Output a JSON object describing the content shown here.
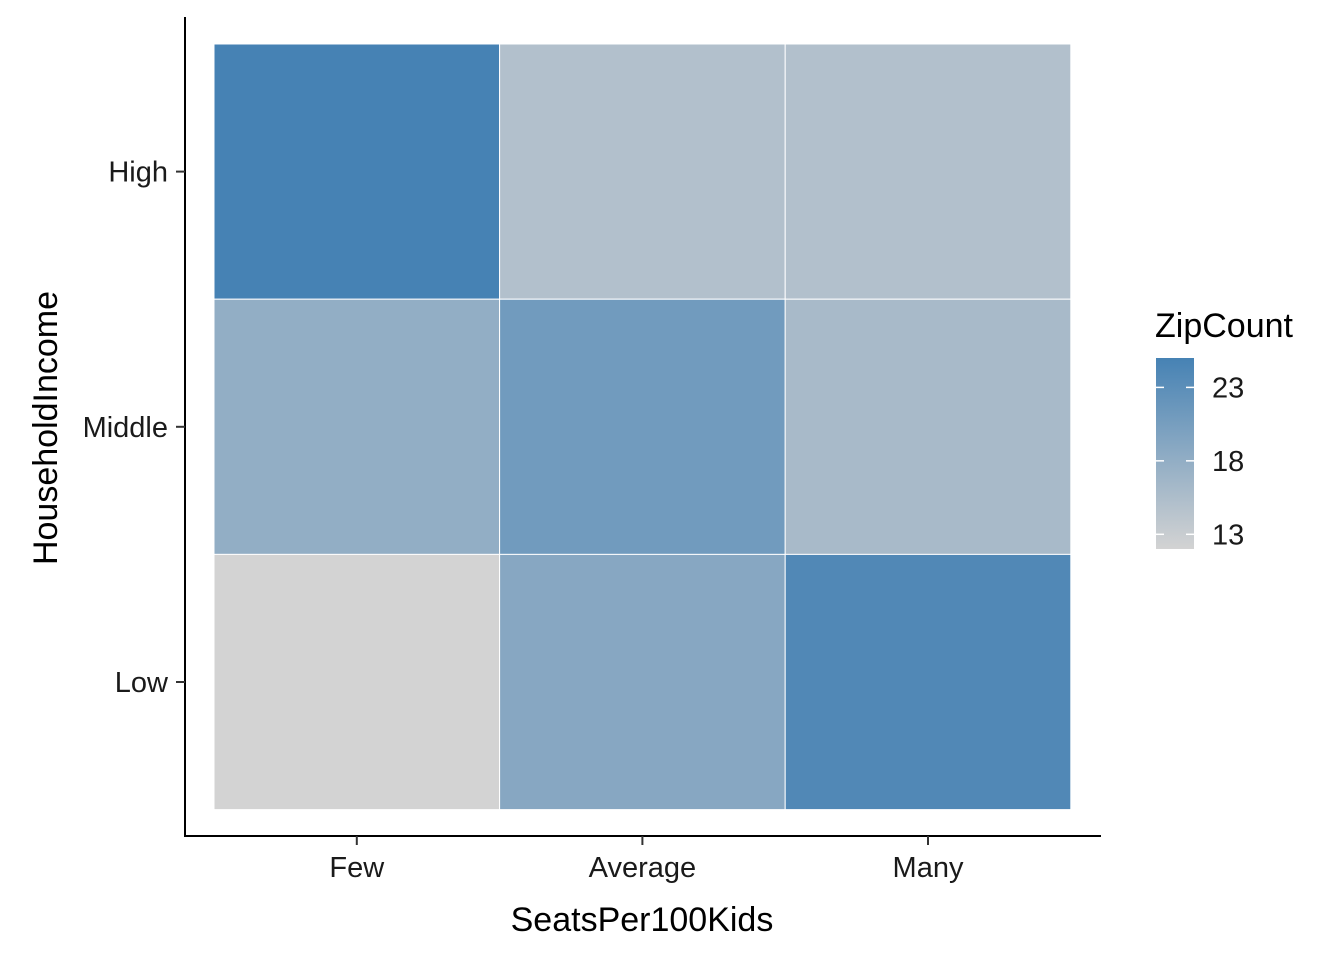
{
  "chart_data": {
    "type": "heatmap",
    "title": "",
    "xlabel": "SeatsPer100Kids",
    "ylabel": "HouseholdIncome",
    "x_categories": [
      "Few",
      "Average",
      "Many"
    ],
    "y_categories": [
      "Low",
      "Middle",
      "High"
    ],
    "cells": [
      {
        "x": "Few",
        "y": "High",
        "value": 25
      },
      {
        "x": "Average",
        "y": "High",
        "value": 15
      },
      {
        "x": "Many",
        "y": "High",
        "value": 15
      },
      {
        "x": "Few",
        "y": "Middle",
        "value": 18
      },
      {
        "x": "Average",
        "y": "Middle",
        "value": 21
      },
      {
        "x": "Many",
        "y": "Middle",
        "value": 16
      },
      {
        "x": "Few",
        "y": "Low",
        "value": 12
      },
      {
        "x": "Average",
        "y": "Low",
        "value": 19
      },
      {
        "x": "Many",
        "y": "Low",
        "value": 24
      }
    ],
    "color_scale": {
      "title": "ZipCount",
      "low_color": "#d3d3d3",
      "high_color": "#4682b4",
      "min": 12,
      "max": 25,
      "breaks": [
        13,
        18,
        23
      ],
      "break_labels": [
        "13",
        "18",
        "23"
      ]
    },
    "legend_position": "right",
    "grid": false
  }
}
